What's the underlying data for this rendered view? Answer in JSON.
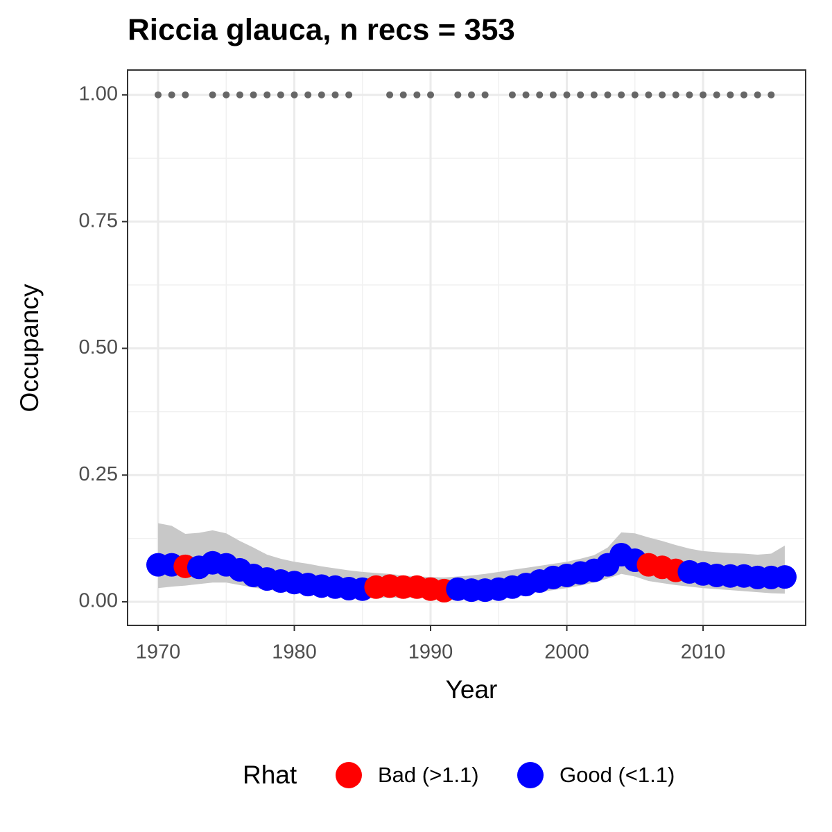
{
  "chart_data": {
    "type": "scatter",
    "title": "Riccia glauca, n recs = 353",
    "x_label": "Year",
    "y_label": "Occupancy",
    "legend_title": "Rhat",
    "x": [
      1970,
      1971,
      1972,
      1973,
      1974,
      1975,
      1976,
      1977,
      1978,
      1979,
      1980,
      1981,
      1982,
      1983,
      1984,
      1985,
      1986,
      1987,
      1988,
      1989,
      1990,
      1991,
      1992,
      1993,
      1994,
      1995,
      1996,
      1997,
      1998,
      1999,
      2000,
      2001,
      2002,
      2003,
      2004,
      2005,
      2006,
      2007,
      2008,
      2009,
      2010,
      2011,
      2012,
      2013,
      2014,
      2015,
      2016
    ],
    "series": [
      {
        "name": "Bad (>1.1)",
        "color": "#ff0000",
        "values": [
          null,
          null,
          0.07,
          null,
          null,
          null,
          null,
          null,
          null,
          null,
          null,
          null,
          null,
          null,
          null,
          null,
          0.029,
          0.031,
          0.029,
          0.029,
          0.025,
          0.022,
          null,
          null,
          null,
          null,
          null,
          null,
          null,
          null,
          null,
          null,
          null,
          null,
          null,
          null,
          0.073,
          0.068,
          0.062,
          null,
          null,
          null,
          null,
          null,
          null,
          null,
          null
        ]
      },
      {
        "name": "Good (<1.1)",
        "color": "#0000ff",
        "values": [
          0.073,
          0.073,
          null,
          0.068,
          0.077,
          0.073,
          0.063,
          0.052,
          0.045,
          0.041,
          0.038,
          0.034,
          0.031,
          0.029,
          0.026,
          0.025,
          null,
          null,
          null,
          null,
          null,
          null,
          0.025,
          0.023,
          0.023,
          0.025,
          0.029,
          0.034,
          0.041,
          0.048,
          0.052,
          0.057,
          0.062,
          0.073,
          0.093,
          0.082,
          null,
          null,
          null,
          0.059,
          0.055,
          0.052,
          0.051,
          0.051,
          0.048,
          0.048,
          0.049
        ]
      }
    ],
    "ribbon": {
      "color": "#c8c8c8",
      "upper": [
        0.155,
        0.15,
        0.134,
        0.136,
        0.141,
        0.135,
        0.12,
        0.107,
        0.093,
        0.085,
        0.079,
        0.075,
        0.07,
        0.066,
        0.062,
        0.059,
        0.057,
        0.055,
        0.052,
        0.05,
        0.049,
        0.048,
        0.05,
        0.052,
        0.055,
        0.059,
        0.063,
        0.067,
        0.071,
        0.075,
        0.079,
        0.085,
        0.092,
        0.107,
        0.137,
        0.135,
        0.127,
        0.12,
        0.112,
        0.105,
        0.1,
        0.098,
        0.096,
        0.095,
        0.093,
        0.095,
        0.111
      ],
      "lower": [
        0.027,
        0.03,
        0.032,
        0.035,
        0.038,
        0.038,
        0.033,
        0.028,
        0.024,
        0.021,
        0.018,
        0.016,
        0.013,
        0.011,
        0.009,
        0.008,
        0.008,
        0.008,
        0.008,
        0.008,
        0.008,
        0.008,
        0.008,
        0.009,
        0.01,
        0.011,
        0.013,
        0.016,
        0.019,
        0.023,
        0.027,
        0.032,
        0.038,
        0.046,
        0.055,
        0.05,
        0.041,
        0.037,
        0.033,
        0.03,
        0.027,
        0.025,
        0.023,
        0.021,
        0.019,
        0.017,
        0.016
      ]
    },
    "records": {
      "color": "#666666",
      "x": [
        1970,
        1971,
        1972,
        1974,
        1975,
        1976,
        1977,
        1978,
        1979,
        1980,
        1981,
        1982,
        1983,
        1984,
        1987,
        1988,
        1989,
        1990,
        1992,
        1993,
        1994,
        1996,
        1997,
        1998,
        1999,
        2000,
        2001,
        2002,
        2003,
        2004,
        2005,
        2006,
        2007,
        2008,
        2009,
        2010,
        2011,
        2012,
        2013,
        2014,
        2015
      ],
      "values": [
        1,
        1,
        1,
        1,
        1,
        1,
        1,
        1,
        1,
        1,
        1,
        1,
        1,
        1,
        1,
        1,
        1,
        1,
        1,
        1,
        1,
        1,
        1,
        1,
        1,
        1,
        1,
        1,
        1,
        1,
        1,
        1,
        1,
        1,
        1,
        1,
        1,
        1,
        1,
        1,
        1
      ]
    },
    "xlim": [
      1967.76,
      2017.53
    ],
    "xticks": [
      1970,
      1980,
      1990,
      2000,
      2010
    ],
    "ylim": [
      -0.0465,
      1.049
    ],
    "yticks": [
      {
        "value": 0,
        "label": "0.00"
      },
      {
        "value": 0.25,
        "label": "0.25"
      },
      {
        "value": 0.5,
        "label": "0.50"
      },
      {
        "value": 0.75,
        "label": "0.75"
      },
      {
        "value": 1,
        "label": "1.00"
      }
    ],
    "grid": true
  }
}
